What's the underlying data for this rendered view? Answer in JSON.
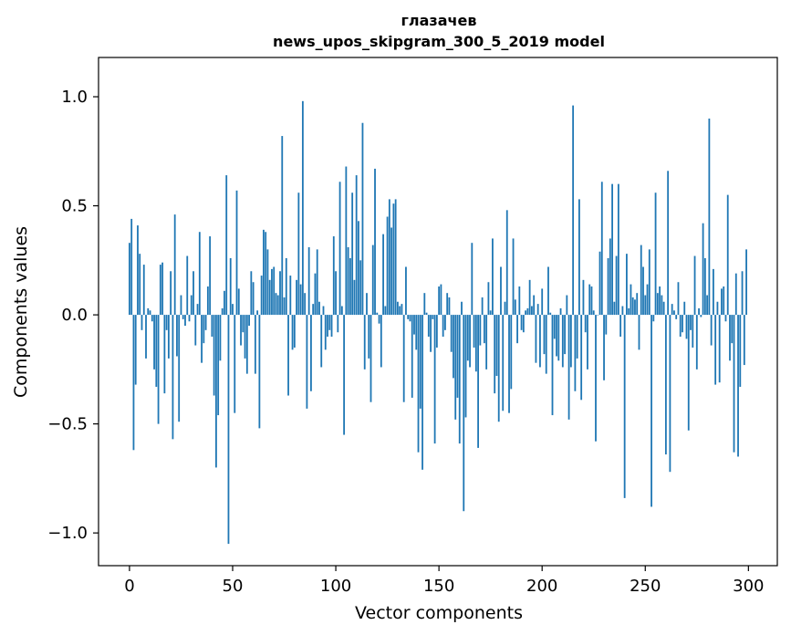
{
  "chart_data": {
    "type": "bar",
    "title_line1": "глазачев",
    "title_line2": "news_upos_skipgram_300_5_2019 model",
    "xlabel": "Vector components",
    "ylabel": "Components values",
    "xlim": [
      -15,
      314
    ],
    "ylim": [
      -1.15,
      1.18
    ],
    "xticks": [
      0,
      50,
      100,
      150,
      200,
      250,
      300
    ],
    "xtick_labels": [
      "0",
      "50",
      "100",
      "150",
      "200",
      "250",
      "300"
    ],
    "yticks": [
      -1.0,
      -0.5,
      0.0,
      0.5,
      1.0
    ],
    "ytick_labels": [
      "−1.0",
      "−0.5",
      "0.0",
      "0.5",
      "1.0"
    ],
    "grid": false,
    "bar_color": "#1f77b4",
    "values": [
      0.33,
      0.44,
      -0.62,
      -0.32,
      0.41,
      0.28,
      -0.07,
      0.23,
      -0.2,
      0.03,
      0.02,
      -0.03,
      -0.25,
      -0.33,
      -0.5,
      0.23,
      0.24,
      -0.36,
      -0.07,
      -0.2,
      0.2,
      -0.57,
      0.46,
      -0.19,
      -0.49,
      0.09,
      -0.02,
      -0.05,
      0.27,
      -0.03,
      0.09,
      0.2,
      -0.14,
      0.05,
      0.38,
      -0.22,
      -0.13,
      -0.07,
      0.13,
      0.36,
      -0.1,
      -0.37,
      -0.7,
      -0.46,
      -0.21,
      0.03,
      0.11,
      0.64,
      -1.05,
      0.26,
      0.05,
      -0.45,
      0.57,
      0.12,
      -0.14,
      -0.08,
      -0.2,
      -0.27,
      -0.05,
      0.2,
      0.15,
      -0.27,
      0.02,
      -0.52,
      0.18,
      0.39,
      0.38,
      0.3,
      0.16,
      0.21,
      0.22,
      0.1,
      0.09,
      0.2,
      0.82,
      0.08,
      0.26,
      -0.37,
      0.18,
      -0.16,
      -0.15,
      0.16,
      0.56,
      0.14,
      0.98,
      0.1,
      -0.43,
      0.31,
      -0.35,
      0.05,
      0.19,
      0.3,
      0.06,
      -0.24,
      0.04,
      -0.16,
      -0.1,
      -0.07,
      -0.1,
      0.36,
      0.2,
      -0.08,
      0.61,
      0.04,
      -0.55,
      0.68,
      0.31,
      0.26,
      0.56,
      0.16,
      0.64,
      0.43,
      0.25,
      0.88,
      -0.25,
      0.1,
      -0.2,
      -0.4,
      0.32,
      0.67,
      0.01,
      -0.04,
      -0.24,
      0.37,
      0.04,
      0.45,
      0.53,
      0.4,
      0.51,
      0.53,
      0.06,
      0.04,
      0.05,
      -0.4,
      0.22,
      -0.02,
      -0.03,
      -0.38,
      -0.09,
      -0.16,
      -0.63,
      -0.43,
      -0.71,
      0.1,
      0.01,
      -0.1,
      -0.17,
      -0.02,
      -0.59,
      -0.15,
      0.13,
      0.14,
      -0.1,
      -0.07,
      0.1,
      0.08,
      -0.17,
      -0.29,
      -0.48,
      -0.38,
      -0.59,
      0.06,
      -0.9,
      -0.47,
      -0.21,
      -0.24,
      0.33,
      -0.15,
      -0.26,
      -0.61,
      -0.14,
      0.08,
      -0.13,
      -0.25,
      0.15,
      0.02,
      0.35,
      -0.36,
      -0.28,
      -0.49,
      0.22,
      -0.44,
      0.06,
      0.48,
      -0.45,
      -0.34,
      0.35,
      0.07,
      -0.13,
      0.13,
      -0.07,
      -0.08,
      0.02,
      0.03,
      0.16,
      0.04,
      0.09,
      -0.22,
      0.05,
      -0.24,
      0.12,
      -0.18,
      -0.27,
      0.22,
      0.01,
      -0.46,
      -0.11,
      -0.19,
      -0.21,
      0.03,
      -0.24,
      -0.18,
      0.09,
      -0.48,
      -0.24,
      0.96,
      -0.35,
      -0.2,
      0.53,
      -0.39,
      0.16,
      -0.08,
      -0.25,
      0.14,
      0.13,
      0.02,
      -0.58,
      0.0,
      0.29,
      0.61,
      -0.3,
      -0.09,
      0.26,
      0.35,
      0.6,
      0.06,
      0.27,
      0.6,
      -0.1,
      0.04,
      -0.84,
      0.28,
      0.03,
      0.14,
      0.08,
      0.07,
      0.1,
      -0.16,
      0.32,
      0.22,
      0.09,
      0.14,
      0.3,
      -0.88,
      -0.03,
      0.56,
      0.1,
      0.13,
      0.09,
      0.06,
      -0.64,
      0.66,
      -0.72,
      0.05,
      0.02,
      -0.02,
      0.15,
      -0.1,
      -0.08,
      0.06,
      -0.11,
      -0.53,
      -0.07,
      -0.15,
      0.27,
      -0.25,
      0.03,
      -0.01,
      0.42,
      0.26,
      0.09,
      0.9,
      -0.14,
      0.21,
      -0.32,
      0.06,
      -0.31,
      0.12,
      0.13,
      -0.03,
      0.55,
      -0.21,
      -0.13,
      -0.63,
      0.19,
      -0.65,
      -0.33,
      0.2,
      -0.23,
      0.3
    ]
  }
}
